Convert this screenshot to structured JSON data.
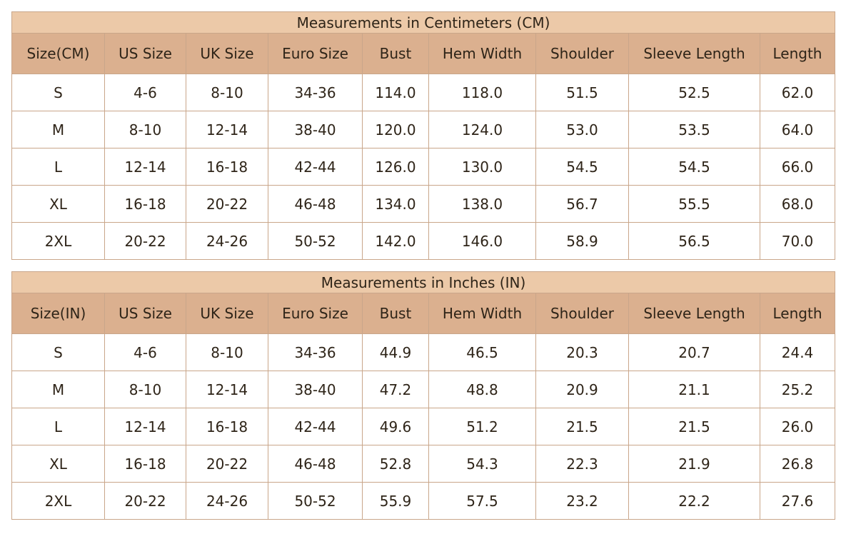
{
  "tables": [
    {
      "title": "Measurements in Centimeters (CM)",
      "headers": [
        "Size(CM)",
        "US Size",
        "UK Size",
        "Euro Size",
        "Bust",
        "Hem Width",
        "Shoulder",
        "Sleeve Length",
        "Length"
      ],
      "rows": [
        [
          "S",
          "4-6",
          "8-10",
          "34-36",
          "114.0",
          "118.0",
          "51.5",
          "52.5",
          "62.0"
        ],
        [
          "M",
          "8-10",
          "12-14",
          "38-40",
          "120.0",
          "124.0",
          "53.0",
          "53.5",
          "64.0"
        ],
        [
          "L",
          "12-14",
          "16-18",
          "42-44",
          "126.0",
          "130.0",
          "54.5",
          "54.5",
          "66.0"
        ],
        [
          "XL",
          "16-18",
          "20-22",
          "46-48",
          "134.0",
          "138.0",
          "56.7",
          "55.5",
          "68.0"
        ],
        [
          "2XL",
          "20-22",
          "24-26",
          "50-52",
          "142.0",
          "146.0",
          "58.9",
          "56.5",
          "70.0"
        ]
      ]
    },
    {
      "title": "Measurements in Inches (IN)",
      "headers": [
        "Size(IN)",
        "US Size",
        "UK Size",
        "Euro Size",
        "Bust",
        "Hem Width",
        "Shoulder",
        "Sleeve Length",
        "Length"
      ],
      "rows": [
        [
          "S",
          "4-6",
          "8-10",
          "34-36",
          "44.9",
          "46.5",
          "20.3",
          "20.7",
          "24.4"
        ],
        [
          "M",
          "8-10",
          "12-14",
          "38-40",
          "47.2",
          "48.8",
          "20.9",
          "21.1",
          "25.2"
        ],
        [
          "L",
          "12-14",
          "16-18",
          "42-44",
          "49.6",
          "51.2",
          "21.5",
          "21.5",
          "26.0"
        ],
        [
          "XL",
          "16-18",
          "20-22",
          "46-48",
          "52.8",
          "54.3",
          "22.3",
          "21.9",
          "26.8"
        ],
        [
          "2XL",
          "20-22",
          "24-26",
          "50-52",
          "55.9",
          "57.5",
          "23.2",
          "22.2",
          "27.6"
        ]
      ]
    }
  ]
}
